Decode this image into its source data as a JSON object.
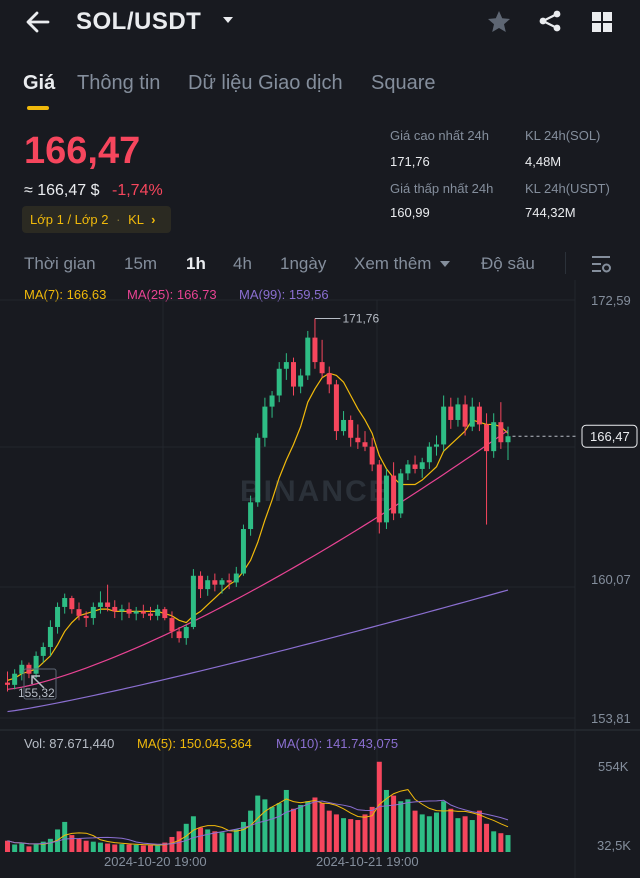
{
  "header": {
    "title": "SOL/USDT"
  },
  "tabs": [
    "Giá",
    "Thông tin",
    "Dữ liệu Giao dịch",
    "Square"
  ],
  "summary": {
    "price": "166,47",
    "price_usd": "≈ 166,47 $",
    "change": "-1,74%",
    "tag_label": "Lớp 1 / Lớp 2",
    "tag_kl": "KL",
    "stats": {
      "high_label": "Giá cao nhất 24h",
      "high_value": "171,76",
      "vol_sol_label": "KL 24h(SOL)",
      "vol_sol_value": "4,48M",
      "low_label": "Giá thấp nhất 24h",
      "low_value": "160,99",
      "vol_usdt_label": "KL 24h(USDT)",
      "vol_usdt_value": "744,32M"
    }
  },
  "intervals": {
    "time": "Thời gian",
    "m15": "15m",
    "h1": "1h",
    "h4": "4h",
    "d1": "1ngày",
    "more": "Xem thêm",
    "depth": "Độ sâu"
  },
  "ma_legend": {
    "ma7": "MA(7): 166,63",
    "ma25": "MA(25): 166,73",
    "ma99": "MA(99): 159,56"
  },
  "vol_legend": {
    "vol": "Vol: 87.671,440",
    "ma5": "MA(5): 150.045,364",
    "ma10": "MA(10): 141.743,075"
  },
  "colors": {
    "up": "#2ebd85",
    "down": "#f6465d",
    "accent": "#f0b90b",
    "ma7": "#f0b90b",
    "ma25": "#e84393",
    "ma99": "#8b6fd1"
  },
  "chart_data": {
    "type": "candlestick",
    "price_axis_ticks": [
      "172,59",
      "160,07",
      "153,81"
    ],
    "volume_axis_ticks": [
      "554K",
      "32,5K"
    ],
    "time_labels": [
      "2024-10-20 19:00",
      "2024-10-21 19:00"
    ],
    "current_price_label": "166,47",
    "high_marker": "171,76",
    "low_marker": "155,32",
    "watermark": "BINANCE",
    "ylim": [
      153.81,
      172.59
    ],
    "candles": [
      {
        "o": 155.4,
        "h": 155.9,
        "l": 155.0,
        "c": 155.3
      },
      {
        "o": 155.3,
        "h": 156.0,
        "l": 155.1,
        "c": 155.8
      },
      {
        "o": 155.8,
        "h": 156.4,
        "l": 155.5,
        "c": 156.2
      },
      {
        "o": 156.2,
        "h": 156.3,
        "l": 155.6,
        "c": 155.8
      },
      {
        "o": 155.8,
        "h": 156.8,
        "l": 155.6,
        "c": 156.6
      },
      {
        "o": 156.6,
        "h": 157.2,
        "l": 156.3,
        "c": 157.0
      },
      {
        "o": 157.0,
        "h": 158.2,
        "l": 156.6,
        "c": 157.9
      },
      {
        "o": 157.9,
        "h": 159.0,
        "l": 157.6,
        "c": 158.8
      },
      {
        "o": 158.8,
        "h": 159.4,
        "l": 158.5,
        "c": 159.2
      },
      {
        "o": 159.2,
        "h": 159.3,
        "l": 158.5,
        "c": 158.7
      },
      {
        "o": 158.7,
        "h": 159.0,
        "l": 158.2,
        "c": 158.4
      },
      {
        "o": 158.4,
        "h": 158.6,
        "l": 157.9,
        "c": 158.3
      },
      {
        "o": 158.3,
        "h": 159.0,
        "l": 158.0,
        "c": 158.8
      },
      {
        "o": 158.8,
        "h": 159.5,
        "l": 158.5,
        "c": 159.0
      },
      {
        "o": 159.0,
        "h": 159.8,
        "l": 158.6,
        "c": 158.8
      },
      {
        "o": 158.8,
        "h": 159.1,
        "l": 158.3,
        "c": 158.6
      },
      {
        "o": 158.6,
        "h": 158.9,
        "l": 158.2,
        "c": 158.7
      },
      {
        "o": 158.7,
        "h": 159.0,
        "l": 158.3,
        "c": 158.5
      },
      {
        "o": 158.5,
        "h": 158.8,
        "l": 158.2,
        "c": 158.6
      },
      {
        "o": 158.6,
        "h": 158.9,
        "l": 158.3,
        "c": 158.5
      },
      {
        "o": 158.5,
        "h": 158.8,
        "l": 158.2,
        "c": 158.4
      },
      {
        "o": 158.4,
        "h": 158.9,
        "l": 158.2,
        "c": 158.7
      },
      {
        "o": 158.7,
        "h": 158.8,
        "l": 158.2,
        "c": 158.3
      },
      {
        "o": 158.3,
        "h": 158.6,
        "l": 157.4,
        "c": 157.7
      },
      {
        "o": 157.7,
        "h": 157.9,
        "l": 157.2,
        "c": 157.4
      },
      {
        "o": 157.4,
        "h": 158.0,
        "l": 157.1,
        "c": 157.9
      },
      {
        "o": 157.9,
        "h": 160.5,
        "l": 157.8,
        "c": 160.2
      },
      {
        "o": 160.2,
        "h": 160.4,
        "l": 159.2,
        "c": 159.6
      },
      {
        "o": 159.6,
        "h": 160.2,
        "l": 159.3,
        "c": 160.0
      },
      {
        "o": 160.0,
        "h": 160.3,
        "l": 159.5,
        "c": 159.8
      },
      {
        "o": 159.8,
        "h": 160.1,
        "l": 159.4,
        "c": 160.0
      },
      {
        "o": 160.0,
        "h": 160.3,
        "l": 159.6,
        "c": 159.9
      },
      {
        "o": 159.9,
        "h": 160.6,
        "l": 159.7,
        "c": 160.3
      },
      {
        "o": 160.3,
        "h": 162.5,
        "l": 160.2,
        "c": 162.3
      },
      {
        "o": 162.3,
        "h": 163.8,
        "l": 162.0,
        "c": 163.5
      },
      {
        "o": 163.5,
        "h": 166.6,
        "l": 163.3,
        "c": 166.4
      },
      {
        "o": 166.4,
        "h": 168.2,
        "l": 166.0,
        "c": 167.8
      },
      {
        "o": 167.8,
        "h": 168.5,
        "l": 167.3,
        "c": 168.3
      },
      {
        "o": 168.3,
        "h": 169.8,
        "l": 168.0,
        "c": 169.5
      },
      {
        "o": 169.5,
        "h": 170.2,
        "l": 169.0,
        "c": 169.8
      },
      {
        "o": 169.8,
        "h": 170.0,
        "l": 168.3,
        "c": 168.7
      },
      {
        "o": 168.7,
        "h": 169.5,
        "l": 168.4,
        "c": 169.2
      },
      {
        "o": 169.2,
        "h": 171.2,
        "l": 169.0,
        "c": 170.9
      },
      {
        "o": 170.9,
        "h": 171.76,
        "l": 169.5,
        "c": 169.8
      },
      {
        "o": 169.8,
        "h": 170.8,
        "l": 169.1,
        "c": 169.3
      },
      {
        "o": 169.3,
        "h": 169.6,
        "l": 168.4,
        "c": 168.8
      },
      {
        "o": 168.8,
        "h": 169.0,
        "l": 166.3,
        "c": 166.7
      },
      {
        "o": 166.7,
        "h": 167.6,
        "l": 166.5,
        "c": 167.2
      },
      {
        "o": 167.2,
        "h": 167.4,
        "l": 166.0,
        "c": 166.4
      },
      {
        "o": 166.4,
        "h": 167.0,
        "l": 165.9,
        "c": 166.2
      },
      {
        "o": 166.2,
        "h": 166.7,
        "l": 165.8,
        "c": 166.0
      },
      {
        "o": 166.0,
        "h": 166.4,
        "l": 164.9,
        "c": 165.2
      },
      {
        "o": 165.2,
        "h": 165.4,
        "l": 162.1,
        "c": 162.6
      },
      {
        "o": 162.6,
        "h": 165.0,
        "l": 162.3,
        "c": 164.7
      },
      {
        "o": 164.7,
        "h": 165.3,
        "l": 162.7,
        "c": 163.0
      },
      {
        "o": 163.0,
        "h": 165.0,
        "l": 162.8,
        "c": 164.8
      },
      {
        "o": 164.8,
        "h": 165.4,
        "l": 164.5,
        "c": 165.2
      },
      {
        "o": 165.2,
        "h": 165.6,
        "l": 164.8,
        "c": 165.0
      },
      {
        "o": 165.0,
        "h": 165.5,
        "l": 164.6,
        "c": 165.3
      },
      {
        "o": 165.3,
        "h": 166.2,
        "l": 165.0,
        "c": 166.0
      },
      {
        "o": 166.0,
        "h": 166.5,
        "l": 165.6,
        "c": 166.1
      },
      {
        "o": 166.1,
        "h": 168.3,
        "l": 165.8,
        "c": 167.8
      },
      {
        "o": 167.8,
        "h": 168.2,
        "l": 166.8,
        "c": 167.2
      },
      {
        "o": 167.2,
        "h": 168.2,
        "l": 166.9,
        "c": 167.9
      },
      {
        "o": 167.9,
        "h": 168.3,
        "l": 166.5,
        "c": 166.9
      },
      {
        "o": 166.9,
        "h": 168.2,
        "l": 166.7,
        "c": 167.8
      },
      {
        "o": 167.8,
        "h": 168.0,
        "l": 166.7,
        "c": 167.0
      },
      {
        "o": 167.0,
        "h": 167.5,
        "l": 162.5,
        "c": 165.8
      },
      {
        "o": 165.8,
        "h": 167.5,
        "l": 165.5,
        "c": 167.1
      },
      {
        "o": 167.1,
        "h": 168.0,
        "l": 165.9,
        "c": 166.2
      },
      {
        "o": 166.2,
        "h": 166.9,
        "l": 165.4,
        "c": 166.47
      }
    ],
    "ma7": [
      155.5,
      155.6,
      155.8,
      155.9,
      156.0,
      156.3,
      156.6,
      157.1,
      157.7,
      158.1,
      158.4,
      158.5,
      158.6,
      158.7,
      158.7,
      158.6,
      158.6,
      158.6,
      158.6,
      158.6,
      158.6,
      158.6,
      158.5,
      158.4,
      158.2,
      158.1,
      158.4,
      158.6,
      158.9,
      159.2,
      159.5,
      159.8,
      160.0,
      160.4,
      160.9,
      161.7,
      162.7,
      163.6,
      164.6,
      165.4,
      166.1,
      166.9,
      168.0,
      168.6,
      169.1,
      169.3,
      169.2,
      168.9,
      168.3,
      167.7,
      167.2,
      166.6,
      165.6,
      165.0,
      164.6,
      164.3,
      164.3,
      164.3,
      164.5,
      164.8,
      165.1,
      165.8,
      166.1,
      166.4,
      166.7,
      167.2,
      167.1,
      167.0,
      167.0,
      166.9,
      166.6
    ],
    "ma25_start": 155.1,
    "ma25_end": 166.73,
    "ma99_start": 154.1,
    "ma99_end": 159.56,
    "volumes": [
      60,
      40,
      45,
      30,
      40,
      55,
      70,
      120,
      160,
      90,
      70,
      60,
      55,
      50,
      45,
      40,
      42,
      40,
      38,
      35,
      36,
      34,
      50,
      80,
      110,
      150,
      190,
      130,
      120,
      110,
      105,
      100,
      120,
      160,
      220,
      300,
      280,
      240,
      260,
      330,
      230,
      250,
      270,
      290,
      260,
      220,
      200,
      180,
      175,
      170,
      200,
      240,
      480,
      330,
      300,
      270,
      280,
      220,
      200,
      190,
      210,
      270,
      230,
      180,
      190,
      170,
      220,
      150,
      110,
      100,
      90
    ]
  }
}
